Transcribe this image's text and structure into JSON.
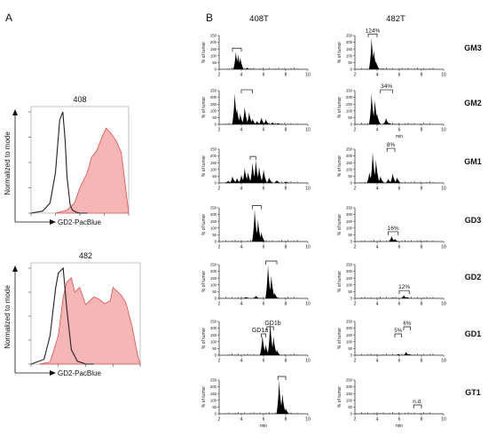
{
  "panels": {
    "a": {
      "label": "A"
    },
    "b": {
      "label": "B"
    }
  },
  "colors": {
    "tumor_fill": "#f6b6b6",
    "tumor_stroke": "#d9534f",
    "control": "#222222",
    "peak_fill": "#000000"
  },
  "chart_data": [
    {
      "type": "area",
      "panel": "A",
      "title": "408",
      "xlabel": "GD2-PacBlue",
      "ylabel": "Normalized to mode",
      "x_scale": "log",
      "xlim": [
        0,
        100000
      ],
      "ylim": [
        0,
        100
      ],
      "series": [
        {
          "x": [
            10,
            30,
            60,
            100,
            150,
            200,
            250,
            300,
            400,
            500,
            700,
            1000,
            2000
          ],
          "y": [
            0,
            2,
            10,
            40,
            92,
            100,
            72,
            35,
            8,
            3,
            1,
            0,
            0
          ]
        },
        {
          "x": [
            100,
            300,
            600,
            1000,
            2000,
            3000,
            5000,
            8000,
            12000,
            20000,
            30000,
            50000,
            80000,
            100000
          ],
          "y": [
            0,
            3,
            10,
            25,
            40,
            55,
            62,
            75,
            84,
            78,
            72,
            60,
            20,
            0
          ]
        }
      ]
    },
    {
      "type": "area",
      "panel": "A",
      "title": "482",
      "xlabel": "GD2-PacBlue",
      "ylabel": "Normalized to mode",
      "x_scale": "log",
      "xlim": [
        0,
        100000
      ],
      "ylim": [
        0,
        100
      ],
      "series": [
        {
          "x": [
            10,
            30,
            50,
            80,
            100,
            150,
            200,
            300,
            500,
            800,
            1000,
            2000
          ],
          "y": [
            0,
            5,
            30,
            80,
            95,
            100,
            60,
            15,
            3,
            1,
            0,
            0
          ]
        },
        {
          "x": [
            20,
            50,
            100,
            150,
            200,
            300,
            400,
            600,
            800,
            1000,
            2000,
            3000,
            5000,
            8000,
            10000,
            20000,
            30000,
            50000,
            80000,
            100000
          ],
          "y": [
            0,
            2,
            30,
            70,
            85,
            90,
            75,
            80,
            70,
            62,
            70,
            68,
            63,
            66,
            80,
            72,
            64,
            40,
            10,
            0
          ]
        }
      ]
    },
    {
      "type": "area",
      "panel": "B",
      "columns": [
        "408T",
        "482T"
      ],
      "rows": [
        "GM3",
        "GM2",
        "GM1",
        "GD3",
        "GD2",
        "GD1",
        "GT1"
      ],
      "xlabel": "min",
      "ylabel": "% of tumor",
      "xlim": [
        2,
        10
      ],
      "ylim": [
        0,
        250
      ],
      "x_ticks": [
        2,
        4,
        6,
        8,
        10
      ],
      "y_ticks": [
        0,
        50,
        100,
        150,
        200,
        250
      ],
      "series": [
        {
          "name": "GM3",
          "column": "408T",
          "peaks": [
            {
              "x": 3.5,
              "y": 130
            },
            {
              "x": 3.7,
              "y": 110
            },
            {
              "x": 3.9,
              "y": 90
            },
            {
              "x": 4.5,
              "y": 10
            },
            {
              "x": 4.9,
              "y": 4
            }
          ],
          "bracket": [
            3.2,
            4.0
          ],
          "label": ""
        },
        {
          "name": "GM3",
          "column": "482T",
          "peaks": [
            {
              "x": 3.5,
              "y": 235
            },
            {
              "x": 3.7,
              "y": 140
            },
            {
              "x": 3.9,
              "y": 60
            },
            {
              "x": 4.4,
              "y": 5
            }
          ],
          "bracket": [
            3.2,
            4.0
          ],
          "label": "124%"
        },
        {
          "name": "GM2",
          "column": "408T",
          "peaks": [
            {
              "x": 3.4,
              "y": 230
            },
            {
              "x": 3.6,
              "y": 120
            },
            {
              "x": 3.9,
              "y": 80
            },
            {
              "x": 4.3,
              "y": 130
            },
            {
              "x": 4.7,
              "y": 90
            },
            {
              "x": 5.0,
              "y": 40
            },
            {
              "x": 5.4,
              "y": 25
            },
            {
              "x": 5.8,
              "y": 50
            },
            {
              "x": 6.2,
              "y": 35
            },
            {
              "x": 6.8,
              "y": 15
            },
            {
              "x": 7.3,
              "y": 10
            }
          ],
          "bracket": [
            4.0,
            5.0
          ],
          "label": ""
        },
        {
          "name": "GM2",
          "column": "482T",
          "peaks": [
            {
              "x": 3.5,
              "y": 230
            },
            {
              "x": 3.8,
              "y": 180
            },
            {
              "x": 4.0,
              "y": 80
            },
            {
              "x": 4.8,
              "y": 45
            },
            {
              "x": 5.1,
              "y": 10
            }
          ],
          "bracket": [
            4.3,
            5.4
          ],
          "label": "34%"
        },
        {
          "name": "GM1",
          "column": "408T",
          "peaks": [
            {
              "x": 2.8,
              "y": 15
            },
            {
              "x": 3.2,
              "y": 50
            },
            {
              "x": 3.6,
              "y": 35
            },
            {
              "x": 4.0,
              "y": 60
            },
            {
              "x": 4.3,
              "y": 110
            },
            {
              "x": 4.6,
              "y": 80
            },
            {
              "x": 5.0,
              "y": 150
            },
            {
              "x": 5.3,
              "y": 170
            },
            {
              "x": 5.6,
              "y": 120
            },
            {
              "x": 6.0,
              "y": 100
            },
            {
              "x": 6.5,
              "y": 40
            },
            {
              "x": 7.2,
              "y": 20
            },
            {
              "x": 8.0,
              "y": 10
            }
          ],
          "bracket": [
            4.8,
            5.3
          ],
          "label": ""
        },
        {
          "name": "GM1",
          "column": "482T",
          "peaks": [
            {
              "x": 3.3,
              "y": 80
            },
            {
              "x": 3.6,
              "y": 230
            },
            {
              "x": 3.9,
              "y": 170
            },
            {
              "x": 4.3,
              "y": 50
            },
            {
              "x": 5.0,
              "y": 30
            },
            {
              "x": 5.4,
              "y": 70
            },
            {
              "x": 5.8,
              "y": 40
            }
          ],
          "bracket": [
            4.9,
            5.6
          ],
          "label": "8%"
        },
        {
          "name": "GD3",
          "column": "408T",
          "peaks": [
            {
              "x": 5.2,
              "y": 240
            },
            {
              "x": 5.5,
              "y": 160
            },
            {
              "x": 5.8,
              "y": 70
            }
          ],
          "bracket": [
            5.0,
            5.8
          ],
          "label": ""
        },
        {
          "name": "GD3",
          "column": "482T",
          "peaks": [
            {
              "x": 5.3,
              "y": 40
            },
            {
              "x": 5.6,
              "y": 20
            }
          ],
          "bracket": [
            5.0,
            5.9
          ],
          "label": "16%"
        },
        {
          "name": "GD2",
          "column": "408T",
          "peaks": [
            {
              "x": 4.4,
              "y": 10
            },
            {
              "x": 5.3,
              "y": 20
            },
            {
              "x": 6.4,
              "y": 250
            },
            {
              "x": 6.7,
              "y": 170
            },
            {
              "x": 7.0,
              "y": 40
            }
          ],
          "bracket": [
            6.2,
            7.2
          ],
          "label": ""
        },
        {
          "name": "GD2",
          "column": "482T",
          "peaks": [
            {
              "x": 5.4,
              "y": 5
            },
            {
              "x": 6.4,
              "y": 25
            },
            {
              "x": 6.7,
              "y": 10
            }
          ],
          "bracket": [
            6.0,
            6.9
          ],
          "label": "12%"
        },
        {
          "name": "GD1",
          "column": "408T",
          "peaks": [
            {
              "x": 5.9,
              "y": 150
            },
            {
              "x": 6.2,
              "y": 80
            },
            {
              "x": 6.6,
              "y": 250
            },
            {
              "x": 6.9,
              "y": 140
            },
            {
              "x": 7.2,
              "y": 40
            }
          ],
          "brackets": [
            [
              5.8,
              6.2
            ],
            [
              6.3,
              6.9
            ]
          ],
          "peak_labels": [
            "GD1a",
            "GD1b"
          ],
          "label": ""
        },
        {
          "name": "GD1",
          "column": "482T",
          "peaks": [
            {
              "x": 5.9,
              "y": 8
            },
            {
              "x": 6.6,
              "y": 25
            },
            {
              "x": 6.9,
              "y": 8
            }
          ],
          "brackets": [
            [
              5.6,
              6.2
            ],
            [
              6.4,
              7.0
            ]
          ],
          "bracket_labels": [
            "5%",
            "6%"
          ],
          "label": ""
        },
        {
          "name": "GT1",
          "column": "408T",
          "peaks": [
            {
              "x": 7.4,
              "y": 250
            },
            {
              "x": 7.7,
              "y": 150
            },
            {
              "x": 8.0,
              "y": 40
            }
          ],
          "bracket": [
            7.3,
            8.0
          ],
          "label": ""
        },
        {
          "name": "GT1",
          "column": "482T",
          "peaks": [],
          "bracket": [
            7.3,
            8.0
          ],
          "label": "n.d."
        }
      ]
    }
  ]
}
